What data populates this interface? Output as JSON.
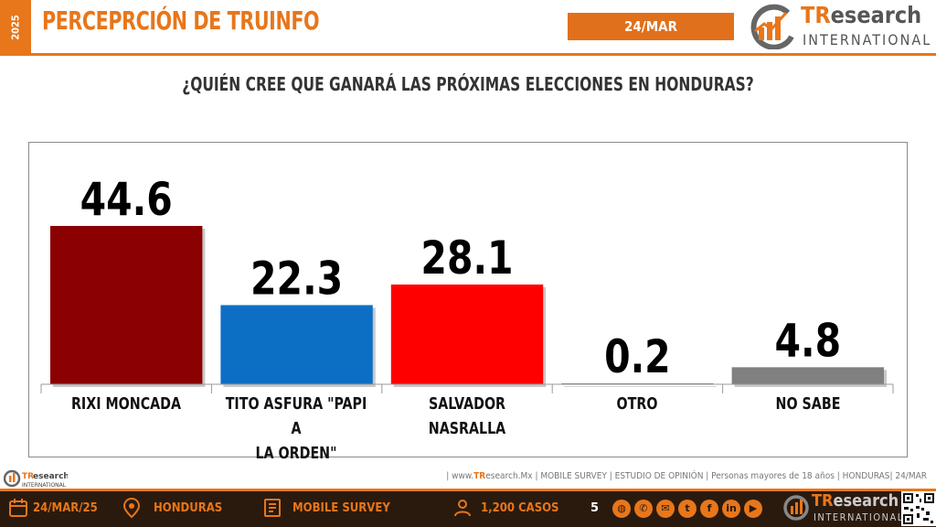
{
  "header": {
    "year": "2025",
    "title": "PERCEPRCIÓN DE TRUINFO",
    "date": "24/MAR",
    "logo_tr": "TR",
    "logo_rest": "esearch",
    "logo_sub": "INTERNATIONAL"
  },
  "question": "¿QUIÉN CREE QUE GANARÁ LAS PRÓXIMAS ELECCIONES EN HONDURAS?",
  "chart_data": {
    "type": "bar",
    "title": "¿QUIÉN CREE QUE GANARÁ LAS PRÓXIMAS ELECCIONES EN HONDURAS?",
    "categories": [
      "RIXI MONCADA",
      "TITO ASFURA \"PAPI A LA ORDEN\"",
      "SALVADOR NASRALLA",
      "OTRO",
      "NO SABE"
    ],
    "category_lines": [
      [
        "RIXI MONCADA"
      ],
      [
        "TITO ASFURA \"PAPI A",
        "LA ORDEN\""
      ],
      [
        "SALVADOR",
        "NASRALLA"
      ],
      [
        "OTRO"
      ],
      [
        "NO SABE"
      ]
    ],
    "values": [
      44.6,
      22.3,
      28.1,
      0.2,
      4.8
    ],
    "value_labels": [
      "44.6",
      "22.3",
      "28.1",
      "0.2",
      "4.8"
    ],
    "colors": [
      "#8b0000",
      "#0d6fc4",
      "#ff0000",
      "#1a1a1a",
      "#808080"
    ],
    "ylim": [
      0,
      50
    ],
    "grid": false,
    "legend": "none"
  },
  "footer": {
    "logo_tr": "TR",
    "logo_rest": "esearch",
    "logo_sub": "INTERNATIONAL",
    "note_prefix": "| www.",
    "note_brand": "TR",
    "note_rest": "esearch.Mx | MOBILE SURVEY | ESTUDIO DE OPINIÓN | Personas mayores de 18 años | HONDURAS| 24/MAR",
    "date": "24/MAR/25",
    "location": "HONDURAS",
    "method": "MOBILE SURVEY",
    "cases": "1,200 CASOS",
    "page": "5",
    "social_icons": [
      "globe-icon",
      "phone-icon",
      "mail-icon",
      "twitter-icon",
      "facebook-icon",
      "linkedin-icon",
      "youtube-icon"
    ]
  }
}
